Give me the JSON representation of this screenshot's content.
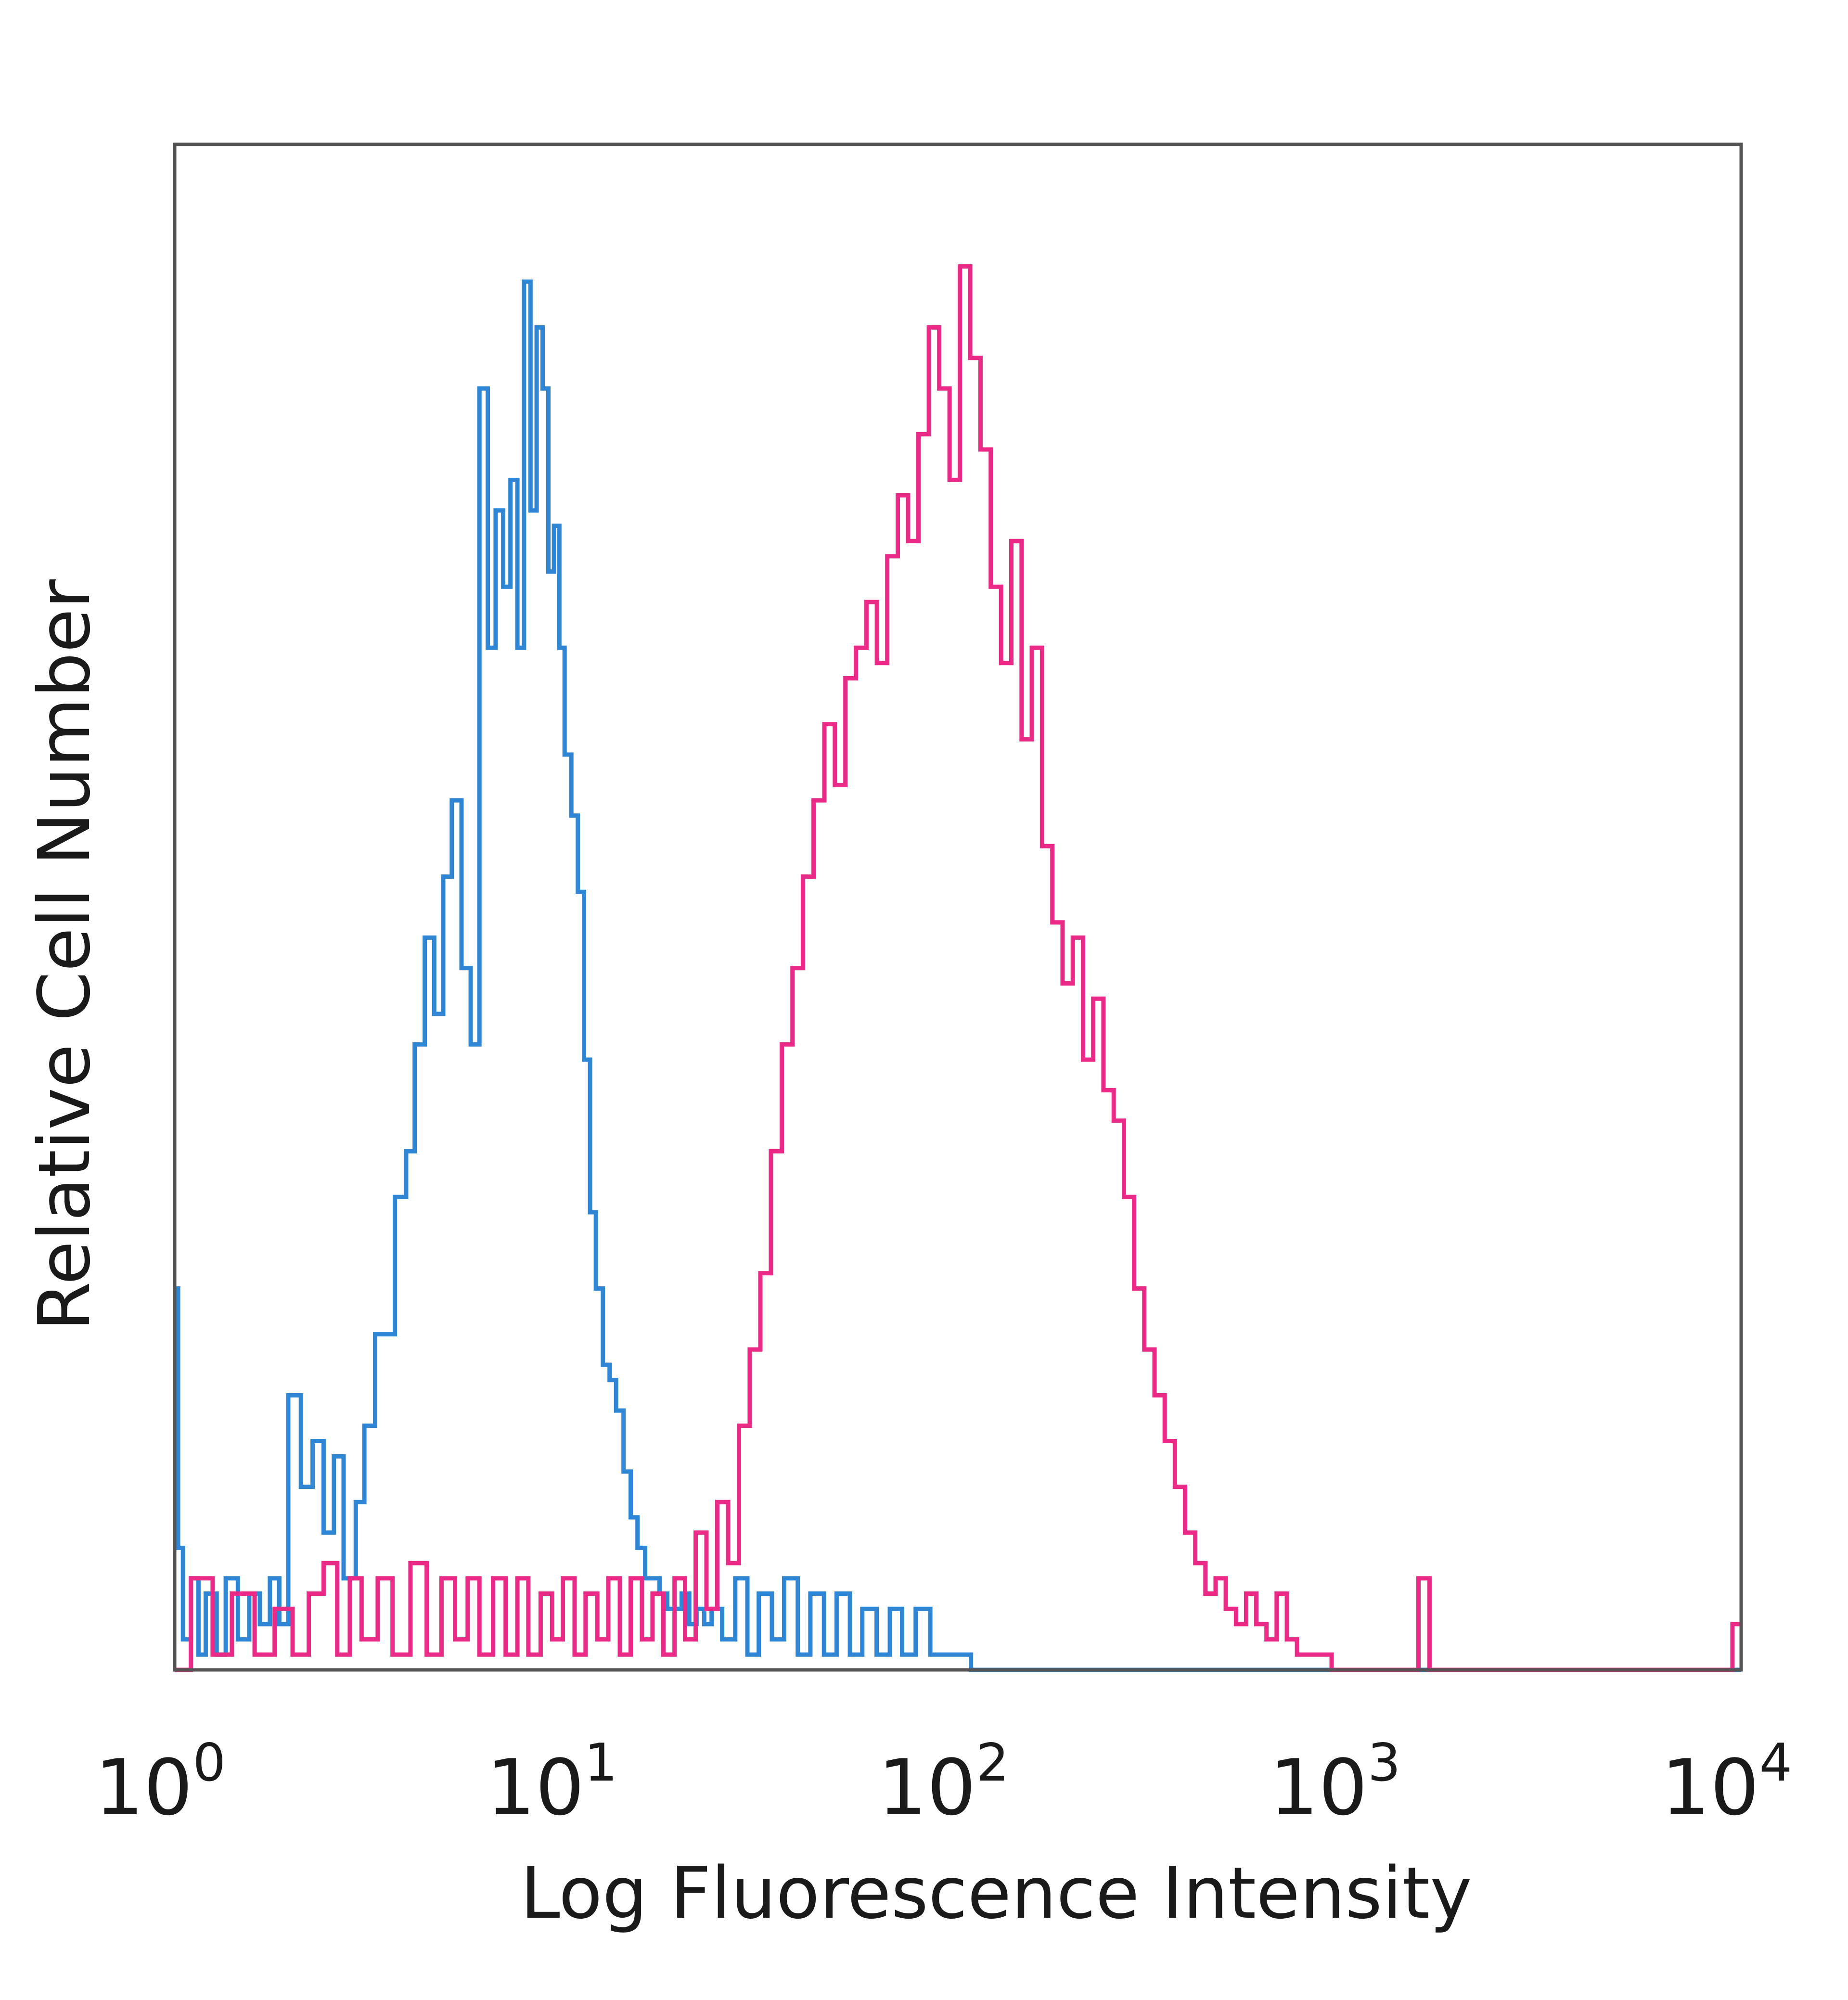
{
  "chart_data": {
    "type": "line",
    "style": "step-histogram",
    "title": "",
    "xlabel": "Log Fluorescence Intensity",
    "ylabel": "Relative Cell Number",
    "xscale": "log",
    "xlim": [
      1,
      10000
    ],
    "ylim": [
      0,
      100
    ],
    "grid": false,
    "legend": "none",
    "x_ticks": [
      {
        "base": "10",
        "exp": "0",
        "value": 1
      },
      {
        "base": "10",
        "exp": "1",
        "value": 10
      },
      {
        "base": "10",
        "exp": "2",
        "value": 100
      },
      {
        "base": "10",
        "exp": "3",
        "value": 1000
      },
      {
        "base": "10",
        "exp": "4",
        "value": 10000
      }
    ],
    "series": [
      {
        "color": "#2e86d4",
        "x": [
          1.0,
          1.02,
          1.05,
          1.1,
          1.15,
          1.2,
          1.28,
          1.35,
          1.45,
          1.55,
          1.65,
          1.75,
          1.85,
          1.95,
          2.1,
          2.25,
          2.4,
          2.55,
          2.7,
          2.9,
          3.05,
          3.25,
          3.45,
          3.65,
          3.9,
          4.1,
          4.35,
          4.6,
          4.85,
          5.1,
          5.4,
          5.7,
          6.0,
          6.3,
          6.6,
          6.9,
          7.2,
          7.5,
          7.8,
          8.1,
          8.4,
          8.7,
          9.0,
          9.3,
          9.6,
          9.9,
          10.3,
          10.7,
          11.1,
          11.5,
          11.9,
          12.4,
          12.9,
          13.4,
          14.0,
          14.6,
          15.2,
          15.9,
          16.6,
          17.3,
          18.1,
          18.9,
          19.7,
          20.6,
          21.5,
          22.5,
          23.5,
          25.0,
          27.0,
          29.0,
          31.0,
          33.5,
          36.0,
          39.0,
          42.0,
          45.5,
          49.0,
          53.0,
          57.0,
          62.0,
          67.0,
          72.0,
          78.0,
          85.0,
          92.0,
          100.0,
          108.0,
          118.0,
          130.0,
          200.0,
          500.0,
          1000.0,
          3000.0,
          10000.0
        ],
        "y": [
          25,
          8,
          2,
          6,
          1,
          5,
          1,
          6,
          2,
          5,
          3,
          6,
          3,
          18,
          12,
          15,
          9,
          14,
          6,
          11,
          16,
          22,
          22,
          31,
          34,
          41,
          48,
          43,
          52,
          57,
          46,
          41,
          84,
          67,
          76,
          71,
          78,
          67,
          91,
          76,
          88,
          84,
          72,
          75,
          67,
          60,
          56,
          51,
          40,
          30,
          25,
          20,
          19,
          17,
          13,
          10,
          8,
          6,
          6,
          5,
          4,
          4,
          5,
          3,
          4,
          3,
          4,
          2,
          6,
          1,
          5,
          2,
          6,
          1,
          5,
          1,
          5,
          1,
          4,
          1,
          4,
          1,
          4,
          1,
          1,
          1,
          0,
          0,
          0,
          0,
          0,
          0,
          0,
          0
        ]
      },
      {
        "color": "#ea2a86",
        "x": [
          1.0,
          1.1,
          1.25,
          1.4,
          1.6,
          1.8,
          2.0,
          2.2,
          2.4,
          2.6,
          2.8,
          3.0,
          3.3,
          3.6,
          4.0,
          4.4,
          4.8,
          5.2,
          5.6,
          6.0,
          6.5,
          7.0,
          7.5,
          8.0,
          8.6,
          9.2,
          9.8,
          10.5,
          11.2,
          12.0,
          12.8,
          13.7,
          14.6,
          15.6,
          16.6,
          17.7,
          18.9,
          20.1,
          21.4,
          22.8,
          24.3,
          25.9,
          27.6,
          29.4,
          31.3,
          33.3,
          35.5,
          37.8,
          40.2,
          42.8,
          45.6,
          48.5,
          51.6,
          54.9,
          58.4,
          62.1,
          66.0,
          70.2,
          74.6,
          79.3,
          84.3,
          89.6,
          95.2,
          101.2,
          107.5,
          114.2,
          121.3,
          128.9,
          136.9,
          145.4,
          154.4,
          164.0,
          174.2,
          185.0,
          196.5,
          208.7,
          221.6,
          235.3,
          249.9,
          265.4,
          281.8,
          299.2,
          317.7,
          337.3,
          358.1,
          380.2,
          403.7,
          428.6,
          455.0,
          483.1,
          512.9,
          544.5,
          578.1,
          613.7,
          651.5,
          691.7,
          734.3,
          779.6,
          900.0,
          1200.0,
          1500.0,
          1600.0,
          1700.0,
          3000.0,
          6000.0,
          9500.0,
          10000.0
        ],
        "y": [
          0,
          6,
          1,
          5,
          1,
          4,
          1,
          5,
          7,
          1,
          6,
          2,
          6,
          1,
          7,
          1,
          6,
          2,
          6,
          1,
          6,
          1,
          6,
          1,
          5,
          2,
          6,
          1,
          5,
          2,
          6,
          1,
          6,
          2,
          5,
          1,
          6,
          2,
          9,
          4,
          11,
          7,
          16,
          21,
          26,
          34,
          41,
          46,
          52,
          57,
          62,
          58,
          65,
          67,
          70,
          66,
          73,
          77,
          74,
          81,
          88,
          84,
          78,
          92,
          86,
          80,
          71,
          66,
          74,
          61,
          67,
          54,
          49,
          45,
          48,
          40,
          44,
          38,
          36,
          31,
          25,
          21,
          18,
          15,
          12,
          9,
          7,
          5,
          6,
          4,
          3,
          5,
          3,
          2,
          5,
          2,
          1,
          1,
          0,
          0,
          6,
          0,
          0,
          0,
          0,
          3,
          1
        ]
      }
    ]
  }
}
